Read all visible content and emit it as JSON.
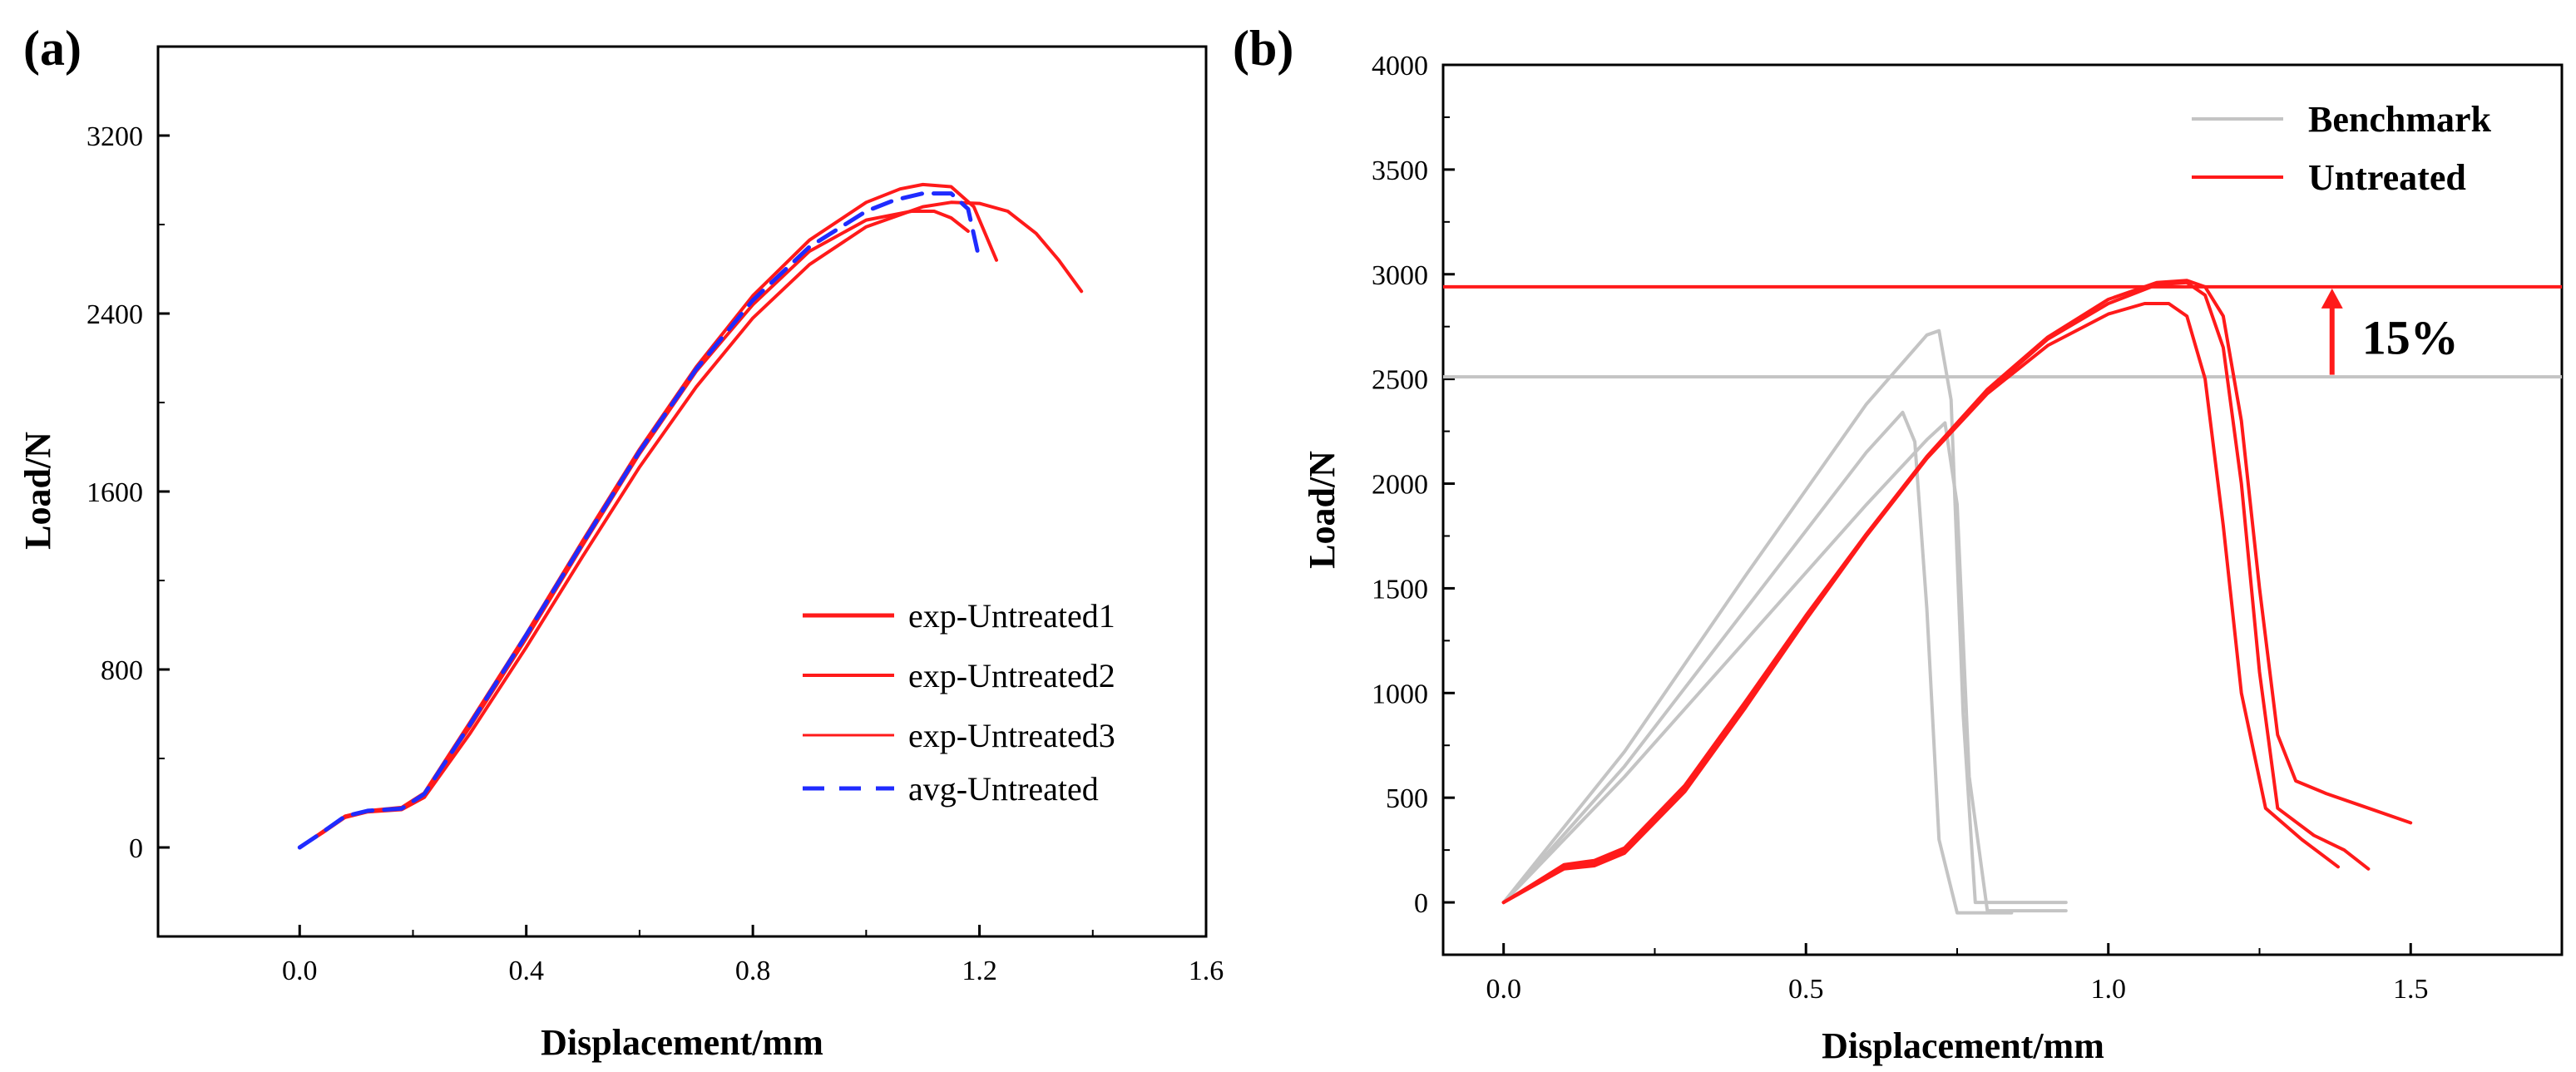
{
  "colors": {
    "red": "#ff1a1a",
    "blue": "#1f2bff",
    "gray": "#c4c4c4",
    "axis": "#000000"
  },
  "chart_data": [
    {
      "panel": "(a)",
      "type": "line",
      "xlabel": "Displacement/mm",
      "ylabel": "Load/N",
      "xlim": [
        -0.25,
        1.6
      ],
      "ylim": [
        -400,
        3600
      ],
      "xticks": [
        0.0,
        0.4,
        0.8,
        1.2,
        1.6
      ],
      "xtick_labels": [
        "0.0",
        "0.4",
        "0.8",
        "1.2",
        "1.6"
      ],
      "yticks": [
        0,
        800,
        1600,
        2400,
        3200
      ],
      "ytick_labels": [
        "0",
        "800",
        "1600",
        "2400",
        "3200"
      ],
      "legend_position": "bottom-right",
      "series": [
        {
          "name": "exp-Untreated1",
          "style": "solid",
          "color": "red",
          "x": [
            0,
            0.04,
            0.08,
            0.12,
            0.18,
            0.22,
            0.3,
            0.4,
            0.5,
            0.6,
            0.7,
            0.8,
            0.9,
            1.0,
            1.06,
            1.1,
            1.15,
            1.19,
            1.21,
            1.23
          ],
          "y": [
            0,
            70,
            140,
            165,
            180,
            245,
            560,
            960,
            1380,
            1790,
            2160,
            2480,
            2730,
            2900,
            2960,
            2980,
            2970,
            2880,
            2760,
            2640
          ]
        },
        {
          "name": "exp-Untreated2",
          "style": "solid",
          "color": "red",
          "x": [
            0,
            0.04,
            0.08,
            0.12,
            0.18,
            0.22,
            0.3,
            0.4,
            0.5,
            0.6,
            0.7,
            0.8,
            0.9,
            1.0,
            1.1,
            1.15,
            1.2,
            1.25,
            1.3,
            1.34,
            1.38
          ],
          "y": [
            0,
            65,
            135,
            160,
            170,
            225,
            510,
            900,
            1310,
            1710,
            2070,
            2380,
            2620,
            2790,
            2880,
            2900,
            2895,
            2860,
            2760,
            2640,
            2500
          ]
        },
        {
          "name": "exp-Untreated3",
          "style": "solid",
          "color": "red",
          "x": [
            0,
            0.04,
            0.08,
            0.12,
            0.18,
            0.22,
            0.3,
            0.4,
            0.5,
            0.6,
            0.7,
            0.8,
            0.9,
            1.0,
            1.08,
            1.12,
            1.15,
            1.18
          ],
          "y": [
            0,
            68,
            140,
            165,
            175,
            240,
            540,
            940,
            1360,
            1770,
            2140,
            2440,
            2680,
            2820,
            2860,
            2860,
            2830,
            2770
          ]
        },
        {
          "name": "avg-Untreated",
          "style": "dashed",
          "color": "blue",
          "x": [
            0,
            0.04,
            0.08,
            0.12,
            0.18,
            0.22,
            0.3,
            0.4,
            0.5,
            0.6,
            0.7,
            0.8,
            0.9,
            1.0,
            1.05,
            1.1,
            1.15,
            1.18,
            1.2
          ],
          "y": [
            0,
            68,
            140,
            165,
            175,
            240,
            550,
            955,
            1370,
            1780,
            2150,
            2460,
            2700,
            2860,
            2910,
            2940,
            2940,
            2870,
            2640
          ]
        }
      ]
    },
    {
      "panel": "(b)",
      "type": "line",
      "xlabel": "Displacement/mm",
      "ylabel": "Load/N",
      "xlim": [
        -0.1,
        1.75
      ],
      "ylim": [
        -250,
        4000
      ],
      "xticks": [
        0.0,
        0.5,
        1.0,
        1.5
      ],
      "xtick_labels": [
        "0.0",
        "0.5",
        "1.0",
        "1.5"
      ],
      "yticks": [
        0,
        500,
        1000,
        1500,
        2000,
        2500,
        3000,
        3500,
        4000
      ],
      "ytick_labels": [
        "0",
        "500",
        "1000",
        "1500",
        "2000",
        "2500",
        "3000",
        "3500",
        "4000"
      ],
      "legend_position": "top-right",
      "legend": [
        {
          "name": "Benchmark",
          "color": "gray"
        },
        {
          "name": "Untreated",
          "color": "red"
        }
      ],
      "reference_lines": [
        {
          "y": 2940,
          "color": "red"
        },
        {
          "y": 2510,
          "color": "gray"
        }
      ],
      "annotation": {
        "text": "15%",
        "x": 1.37,
        "arrow_from_y": 2520,
        "arrow_to_y": 2940
      },
      "series": [
        {
          "name": "Benchmark-1",
          "color": "gray",
          "x": [
            0,
            0.2,
            0.4,
            0.6,
            0.7,
            0.72,
            0.74,
            0.76,
            0.78,
            0.85,
            0.93
          ],
          "y": [
            0,
            720,
            1560,
            2380,
            2710,
            2730,
            2400,
            900,
            0,
            0,
            0
          ]
        },
        {
          "name": "Benchmark-2",
          "color": "gray",
          "x": [
            0,
            0.2,
            0.4,
            0.6,
            0.66,
            0.68,
            0.7,
            0.72,
            0.75,
            0.8,
            0.84
          ],
          "y": [
            0,
            650,
            1400,
            2150,
            2340,
            2200,
            1400,
            300,
            -50,
            -50,
            -50
          ]
        },
        {
          "name": "Benchmark-3",
          "color": "gray",
          "x": [
            0,
            0.2,
            0.4,
            0.6,
            0.7,
            0.73,
            0.75,
            0.77,
            0.8,
            0.86,
            0.93
          ],
          "y": [
            0,
            600,
            1250,
            1900,
            2210,
            2290,
            1900,
            600,
            -40,
            -40,
            -40
          ]
        },
        {
          "name": "Untreated-1",
          "color": "red",
          "x": [
            0,
            0.05,
            0.1,
            0.15,
            0.2,
            0.3,
            0.4,
            0.5,
            0.6,
            0.7,
            0.8,
            0.9,
            1.0,
            1.08,
            1.13,
            1.16,
            1.19,
            1.22,
            1.25,
            1.28,
            1.31,
            1.36,
            1.42,
            1.5
          ],
          "y": [
            0,
            90,
            180,
            200,
            260,
            560,
            960,
            1370,
            1760,
            2130,
            2450,
            2700,
            2880,
            2960,
            2970,
            2940,
            2800,
            2300,
            1500,
            800,
            580,
            520,
            460,
            380
          ]
        },
        {
          "name": "Untreated-2",
          "color": "red",
          "x": [
            0,
            0.05,
            0.1,
            0.15,
            0.2,
            0.3,
            0.4,
            0.5,
            0.6,
            0.7,
            0.8,
            0.9,
            1.0,
            1.06,
            1.1,
            1.13,
            1.16,
            1.19,
            1.22,
            1.26,
            1.32,
            1.38
          ],
          "y": [
            0,
            80,
            160,
            175,
            235,
            530,
            930,
            1350,
            1750,
            2120,
            2430,
            2660,
            2810,
            2860,
            2860,
            2800,
            2500,
            1800,
            1000,
            450,
            300,
            170
          ]
        },
        {
          "name": "Untreated-3",
          "color": "red",
          "x": [
            0,
            0.05,
            0.1,
            0.15,
            0.2,
            0.3,
            0.4,
            0.5,
            0.6,
            0.7,
            0.8,
            0.9,
            1.0,
            1.08,
            1.13,
            1.16,
            1.19,
            1.22,
            1.25,
            1.28,
            1.34,
            1.39,
            1.43
          ],
          "y": [
            0,
            85,
            170,
            185,
            245,
            545,
            945,
            1360,
            1755,
            2125,
            2440,
            2690,
            2860,
            2950,
            2960,
            2900,
            2650,
            2000,
            1100,
            450,
            320,
            250,
            160
          ]
        }
      ]
    }
  ]
}
